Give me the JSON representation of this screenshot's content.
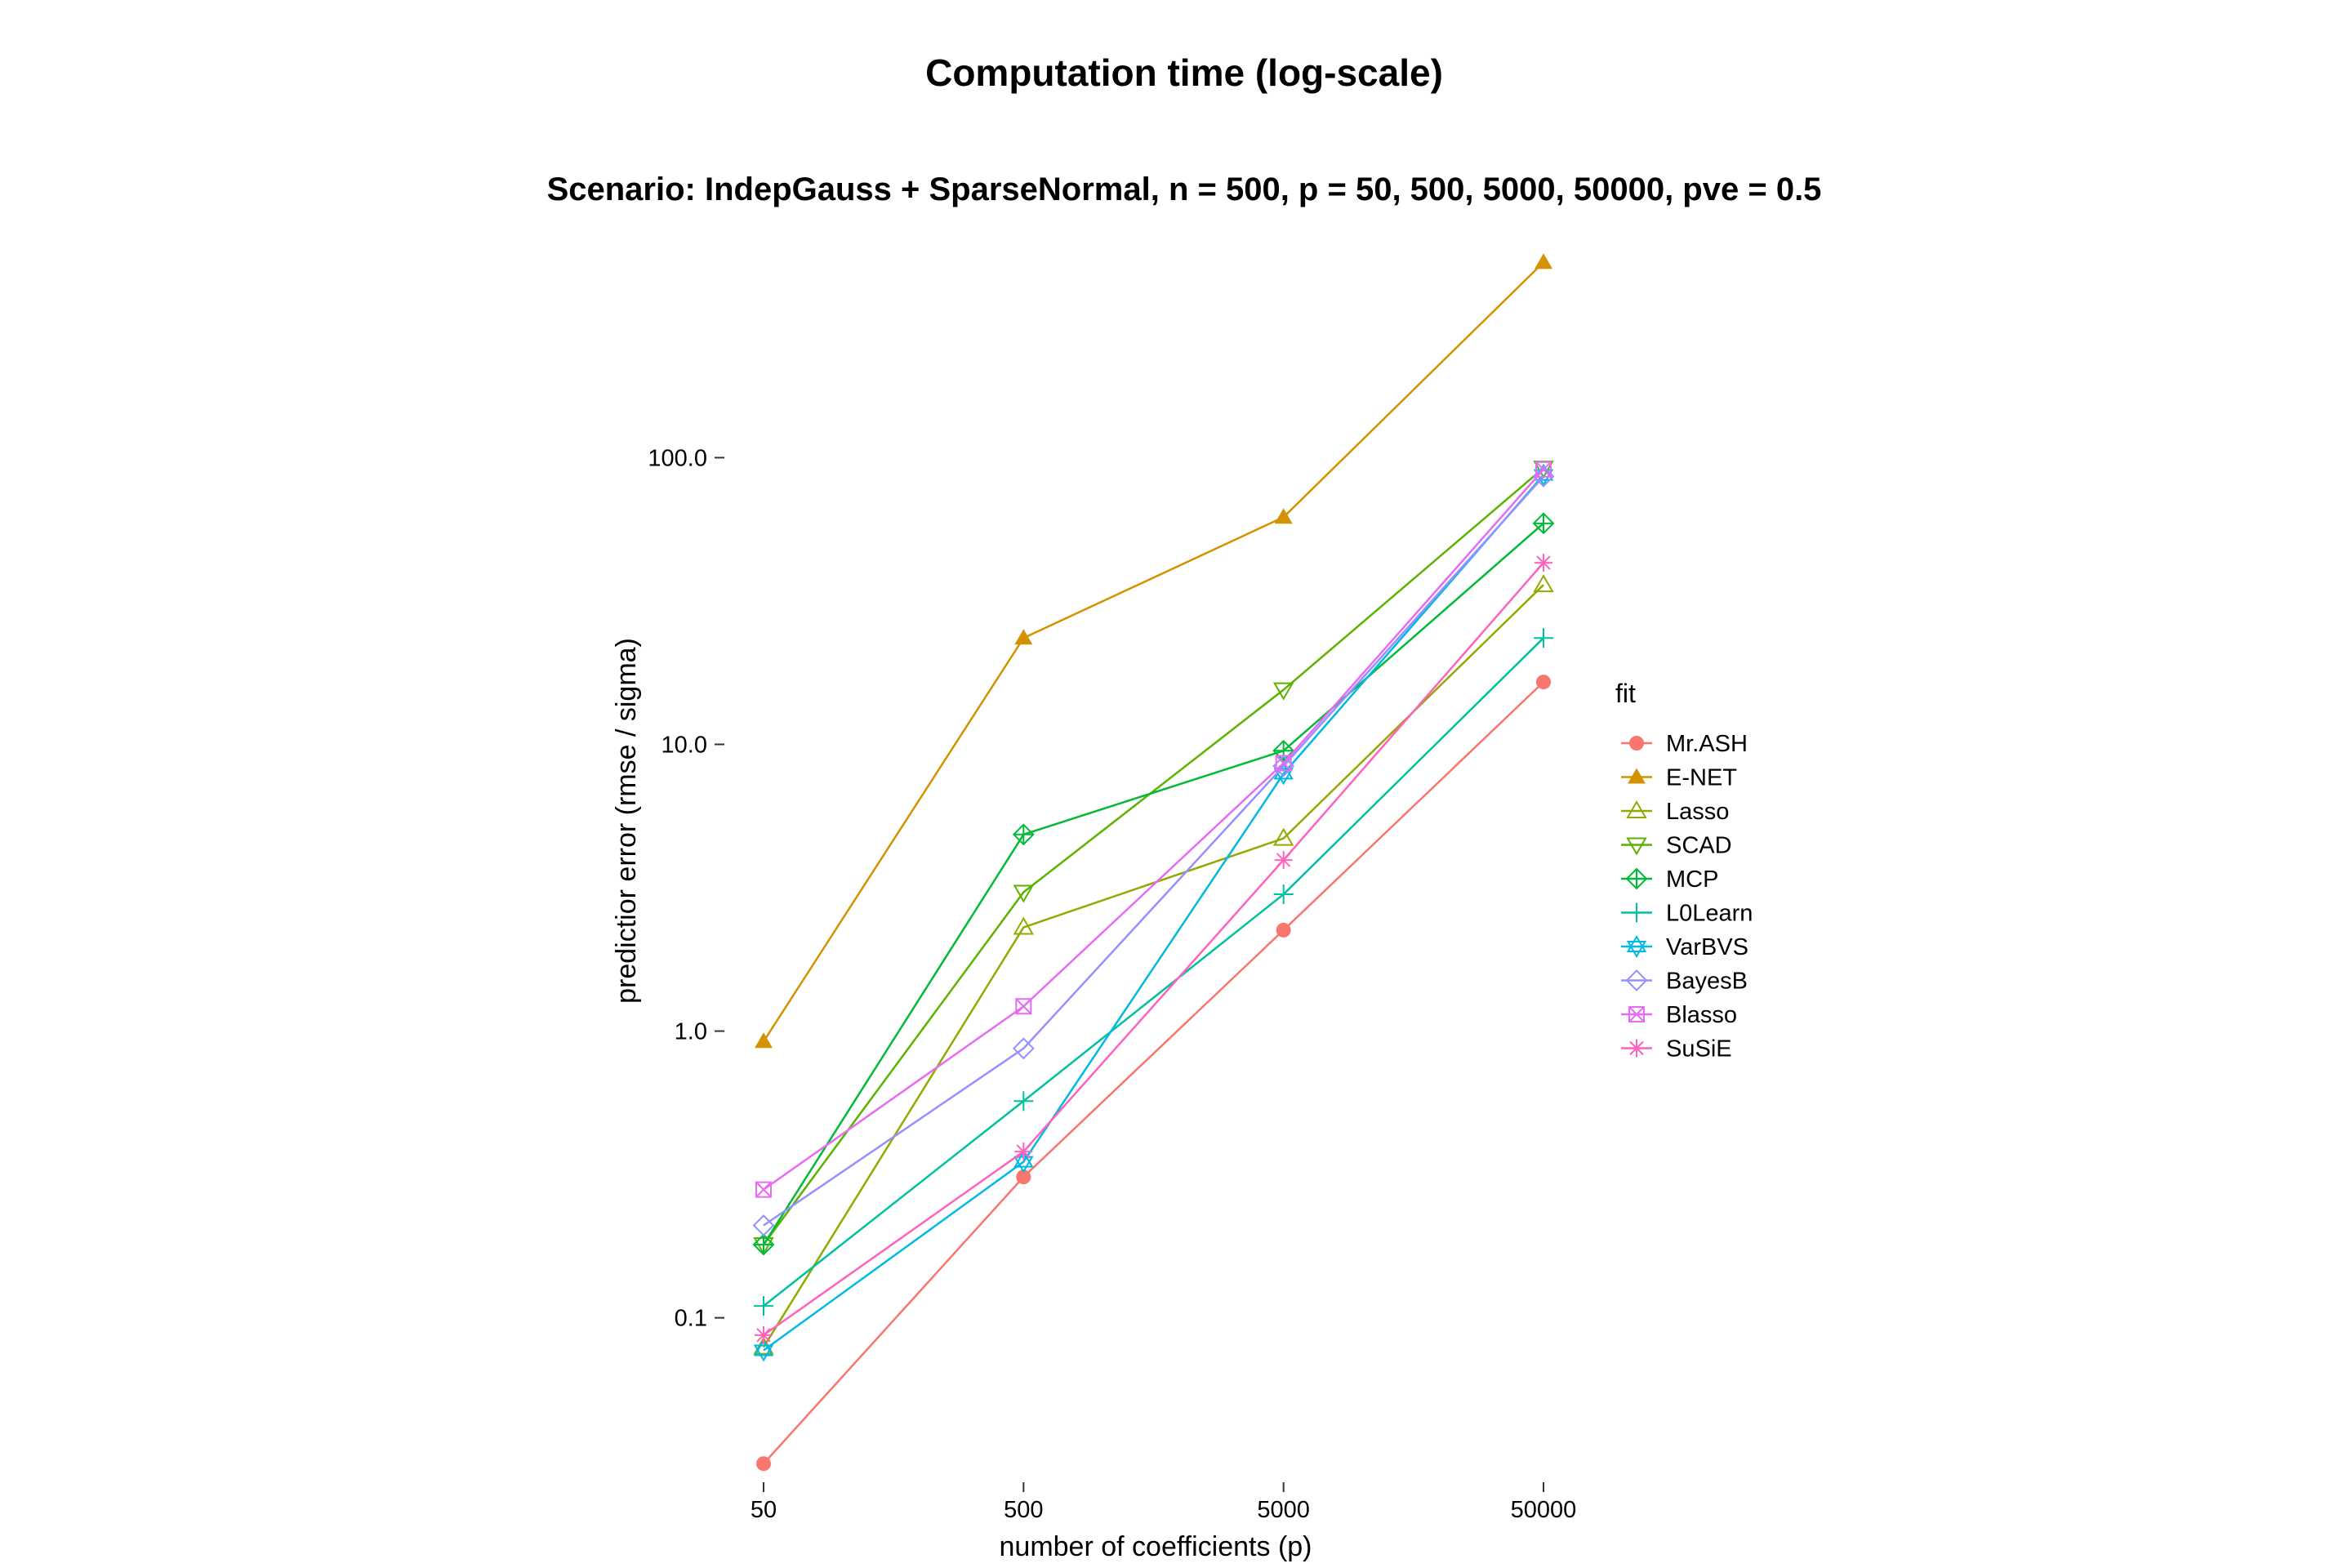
{
  "chart_data": {
    "type": "line",
    "title": "Computation time (log-scale)",
    "subtitle": "Scenario: IndepGauss + SparseNormal, n = 500, p = 50, 500, 5000, 50000, pve = 0.5",
    "xlabel": "number of coefficients (p)",
    "ylabel": "predictior error (rmse / sigma)",
    "x_scale": "log10",
    "y_scale": "log10",
    "x": [
      50,
      500,
      5000,
      50000
    ],
    "x_tick_labels": [
      "50",
      "500",
      "5000",
      "50000"
    ],
    "y_ticks": [
      0.1,
      1,
      10,
      100
    ],
    "y_tick_labels": [
      "0.1",
      "1.0",
      "10.0",
      "100.0"
    ],
    "ylim": [
      0.025,
      650
    ],
    "grid": false,
    "legend_title": "fit",
    "legend_position": "right",
    "series": [
      {
        "name": "Mr.ASH",
        "color": "#F8766D",
        "marker": "filled-circle",
        "values": [
          0.031,
          0.31,
          2.25,
          16.5
        ]
      },
      {
        "name": "E-NET",
        "color": "#D39200",
        "marker": "filled-triangle",
        "values": [
          0.92,
          23.5,
          62,
          480
        ]
      },
      {
        "name": "Lasso",
        "color": "#93AA00",
        "marker": "open-triangle",
        "values": [
          0.079,
          2.3,
          4.7,
          36
        ]
      },
      {
        "name": "SCAD",
        "color": "#5BB300",
        "marker": "open-triangle-down",
        "values": [
          0.18,
          3.05,
          15.5,
          92
        ]
      },
      {
        "name": "MCP",
        "color": "#00BA38",
        "marker": "diamond-plus",
        "values": [
          0.18,
          4.85,
          9.5,
          59
        ]
      },
      {
        "name": "L0Learn",
        "color": "#00C19F",
        "marker": "plus",
        "values": [
          0.11,
          0.57,
          3.0,
          23.5
        ]
      },
      {
        "name": "VarBVS",
        "color": "#00B9E3",
        "marker": "star-of-david",
        "values": [
          0.077,
          0.35,
          7.9,
          87
        ]
      },
      {
        "name": "BayesB",
        "color": "#9590FF",
        "marker": "open-diamond",
        "values": [
          0.21,
          0.87,
          8.4,
          86
        ]
      },
      {
        "name": "Blasso",
        "color": "#E76BF3",
        "marker": "square-cross",
        "values": [
          0.28,
          1.22,
          8.6,
          91
        ]
      },
      {
        "name": "SuSiE",
        "color": "#FF62BC",
        "marker": "asterisk",
        "values": [
          0.087,
          0.38,
          3.95,
          43
        ]
      }
    ]
  }
}
